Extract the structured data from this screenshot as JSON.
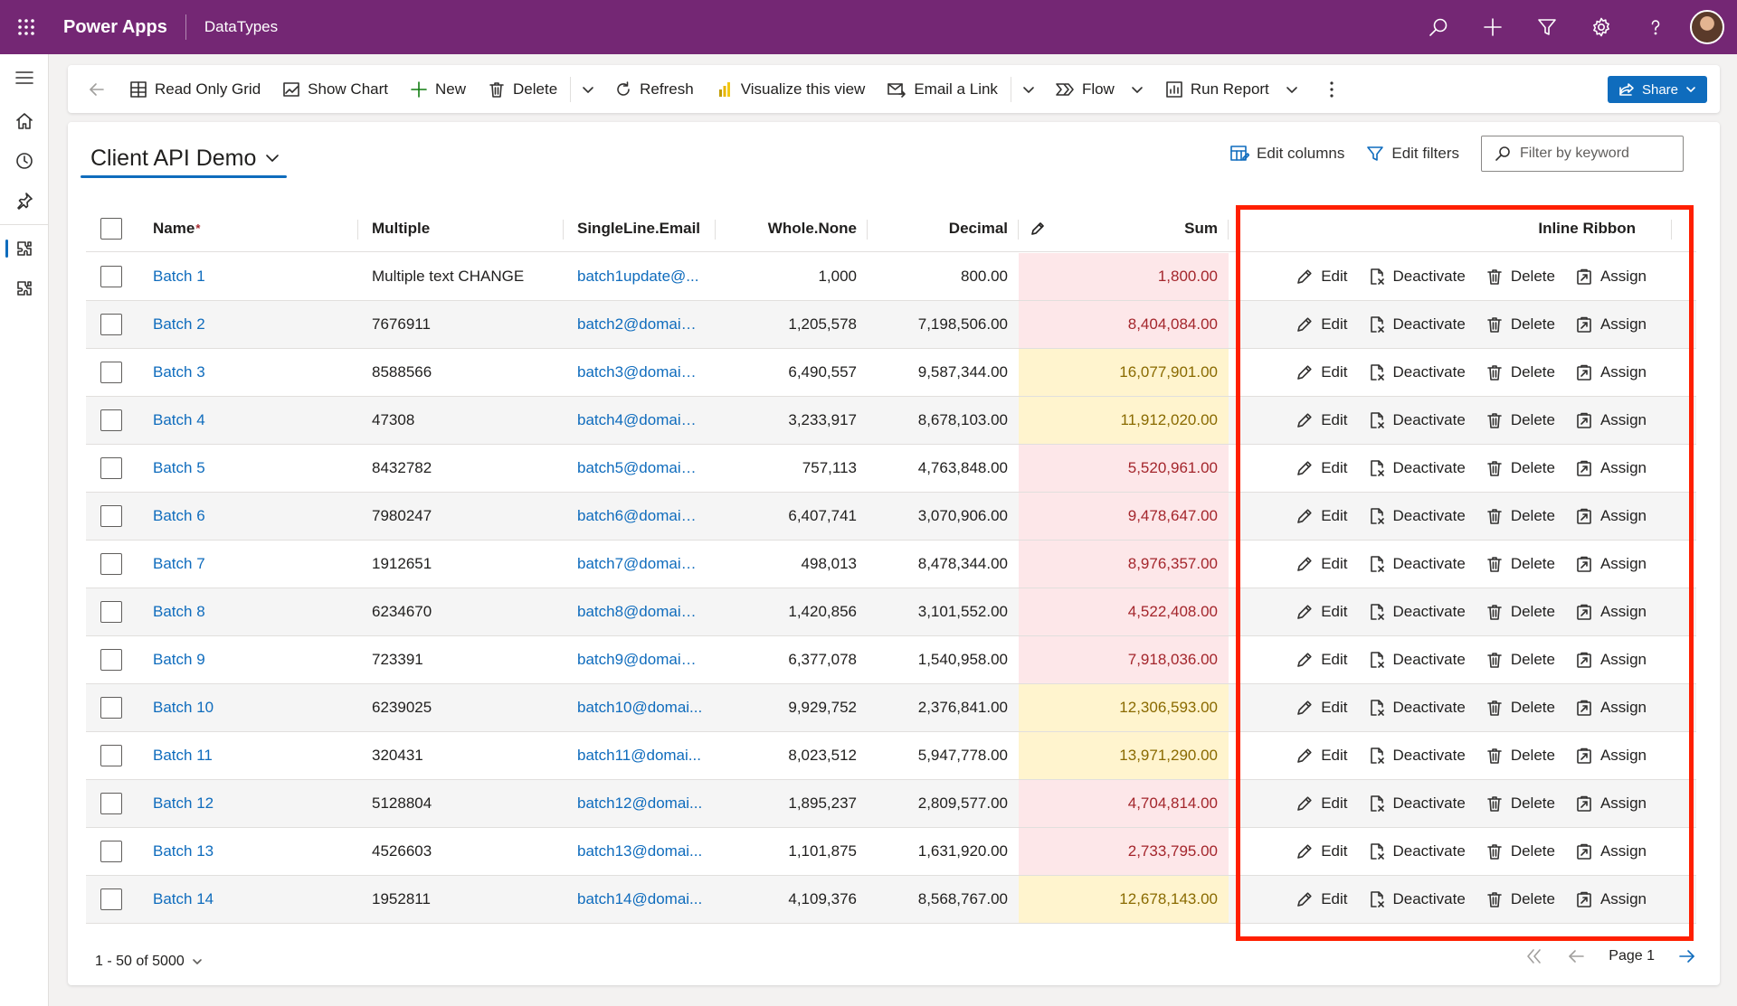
{
  "header": {
    "app_name": "Power Apps",
    "environment": "DataTypes",
    "icons": [
      "search-icon",
      "add-icon",
      "filter-icon",
      "settings-icon",
      "help-icon"
    ]
  },
  "leftnav": {
    "items": [
      "menu-icon",
      "home-icon",
      "recent-icon",
      "pinned-icon",
      "entity-icon",
      "entity-icon"
    ]
  },
  "commandbar": {
    "read_only_grid": "Read Only Grid",
    "show_chart": "Show Chart",
    "new": "New",
    "delete": "Delete",
    "refresh": "Refresh",
    "visualize": "Visualize this view",
    "email_link": "Email a Link",
    "flow": "Flow",
    "run_report": "Run Report",
    "share": "Share"
  },
  "view": {
    "title": "Client API Demo",
    "edit_columns": "Edit columns",
    "edit_filters": "Edit filters",
    "filter_placeholder": "Filter by keyword"
  },
  "grid": {
    "columns": {
      "name": "Name",
      "required_marker": "*",
      "multiple": "Multiple",
      "email": "SingleLine.Email",
      "whole": "Whole.None",
      "decimal": "Decimal",
      "sum": "Sum",
      "inline": "Inline Ribbon"
    },
    "actions": {
      "edit": "Edit",
      "deactivate": "Deactivate",
      "delete": "Delete",
      "assign": "Assign"
    },
    "colors": {
      "sum_red_bg": "#fde7e9",
      "sum_yellow_bg": "#fff4ce"
    },
    "rows": [
      {
        "name": "Batch 1",
        "multiple": "Multiple text CHANGE",
        "email": "batch1update@...",
        "whole": "1,000",
        "decimal": "800.00",
        "sum": "1,800.00",
        "level": "red"
      },
      {
        "name": "Batch 2",
        "multiple": "7676911",
        "email": "batch2@domain....",
        "whole": "1,205,578",
        "decimal": "7,198,506.00",
        "sum": "8,404,084.00",
        "level": "red"
      },
      {
        "name": "Batch 3",
        "multiple": "8588566",
        "email": "batch3@domain....",
        "whole": "6,490,557",
        "decimal": "9,587,344.00",
        "sum": "16,077,901.00",
        "level": "yellow"
      },
      {
        "name": "Batch 4",
        "multiple": "47308",
        "email": "batch4@domain....",
        "whole": "3,233,917",
        "decimal": "8,678,103.00",
        "sum": "11,912,020.00",
        "level": "yellow"
      },
      {
        "name": "Batch 5",
        "multiple": "8432782",
        "email": "batch5@domain....",
        "whole": "757,113",
        "decimal": "4,763,848.00",
        "sum": "5,520,961.00",
        "level": "red"
      },
      {
        "name": "Batch 6",
        "multiple": "7980247",
        "email": "batch6@domain....",
        "whole": "6,407,741",
        "decimal": "3,070,906.00",
        "sum": "9,478,647.00",
        "level": "red"
      },
      {
        "name": "Batch 7",
        "multiple": "1912651",
        "email": "batch7@domain....",
        "whole": "498,013",
        "decimal": "8,478,344.00",
        "sum": "8,976,357.00",
        "level": "red"
      },
      {
        "name": "Batch 8",
        "multiple": "6234670",
        "email": "batch8@domain....",
        "whole": "1,420,856",
        "decimal": "3,101,552.00",
        "sum": "4,522,408.00",
        "level": "red"
      },
      {
        "name": "Batch 9",
        "multiple": "723391",
        "email": "batch9@domain....",
        "whole": "6,377,078",
        "decimal": "1,540,958.00",
        "sum": "7,918,036.00",
        "level": "red"
      },
      {
        "name": "Batch 10",
        "multiple": "6239025",
        "email": "batch10@domai...",
        "whole": "9,929,752",
        "decimal": "2,376,841.00",
        "sum": "12,306,593.00",
        "level": "yellow"
      },
      {
        "name": "Batch 11",
        "multiple": "320431",
        "email": "batch11@domai...",
        "whole": "8,023,512",
        "decimal": "5,947,778.00",
        "sum": "13,971,290.00",
        "level": "yellow"
      },
      {
        "name": "Batch 12",
        "multiple": "5128804",
        "email": "batch12@domai...",
        "whole": "1,895,237",
        "decimal": "2,809,577.00",
        "sum": "4,704,814.00",
        "level": "red"
      },
      {
        "name": "Batch 13",
        "multiple": "4526603",
        "email": "batch13@domai...",
        "whole": "1,101,875",
        "decimal": "1,631,920.00",
        "sum": "2,733,795.00",
        "level": "red"
      },
      {
        "name": "Batch 14",
        "multiple": "1952811",
        "email": "batch14@domai...",
        "whole": "4,109,376",
        "decimal": "8,568,767.00",
        "sum": "12,678,143.00",
        "level": "yellow"
      }
    ]
  },
  "footer": {
    "record_range": "1 - 50 of 5000",
    "page_label": "Page 1"
  },
  "annotation": {
    "highlight_color": "#ff1f00"
  }
}
